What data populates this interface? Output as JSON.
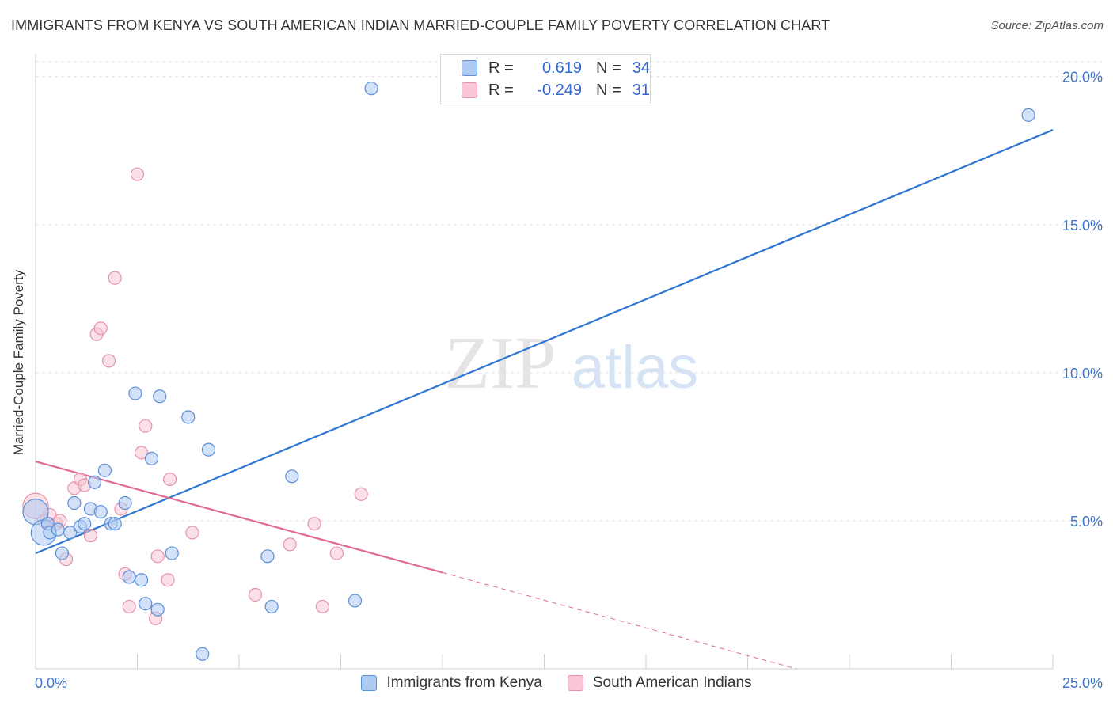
{
  "header": {
    "title": "IMMIGRANTS FROM KENYA VS SOUTH AMERICAN INDIAN MARRIED-COUPLE FAMILY POVERTY CORRELATION CHART",
    "source": "Source: ZipAtlas.com"
  },
  "watermark": {
    "zip": "ZIP",
    "atlas": "atlas"
  },
  "legend": {
    "r_label": "R =",
    "n_label": "N =",
    "series": [
      {
        "r": "0.619",
        "n": "34"
      },
      {
        "r": "-0.249",
        "n": "31"
      }
    ]
  },
  "colors": {
    "blue_fill": "#aecbf3",
    "blue_stroke": "#5b8fd6",
    "blue_line": "#2f74d0",
    "pink_fill": "#f8c6d4",
    "pink_stroke": "#e593ad",
    "pink_line": "#e06a96",
    "axis_text": "#3f74c9"
  },
  "chart_data": {
    "type": "scatter",
    "title": "IMMIGRANTS FROM KENYA VS SOUTH AMERICAN INDIAN MARRIED-COUPLE FAMILY POVERTY CORRELATION CHART",
    "xlabel": "",
    "ylabel": "Married-Couple Family Poverty",
    "xlim": [
      0,
      25
    ],
    "ylim": [
      0,
      20.5
    ],
    "x_tick_labels": [
      "0.0%",
      "25.0%"
    ],
    "y_ticks": [
      5,
      10,
      15,
      20
    ],
    "y_tick_labels": [
      "5.0%",
      "10.0%",
      "15.0%",
      "20.0%"
    ],
    "series": [
      {
        "name": "Immigrants from Kenya",
        "color": "blue",
        "points": [
          {
            "x": 0.0,
            "y": 5.3,
            "big": true
          },
          {
            "x": 0.2,
            "y": 4.6,
            "big": true
          },
          {
            "x": 0.3,
            "y": 4.9
          },
          {
            "x": 0.35,
            "y": 4.6
          },
          {
            "x": 0.55,
            "y": 4.7
          },
          {
            "x": 0.65,
            "y": 3.9
          },
          {
            "x": 0.85,
            "y": 4.6
          },
          {
            "x": 0.95,
            "y": 5.6
          },
          {
            "x": 1.1,
            "y": 4.8
          },
          {
            "x": 1.2,
            "y": 4.9
          },
          {
            "x": 1.35,
            "y": 5.4
          },
          {
            "x": 1.45,
            "y": 6.3
          },
          {
            "x": 1.6,
            "y": 5.3
          },
          {
            "x": 1.7,
            "y": 6.7
          },
          {
            "x": 1.85,
            "y": 4.9
          },
          {
            "x": 1.95,
            "y": 4.9
          },
          {
            "x": 2.2,
            "y": 5.6
          },
          {
            "x": 2.3,
            "y": 3.1
          },
          {
            "x": 2.45,
            "y": 9.3
          },
          {
            "x": 2.6,
            "y": 3.0
          },
          {
            "x": 2.7,
            "y": 2.2
          },
          {
            "x": 2.85,
            "y": 7.1
          },
          {
            "x": 3.0,
            "y": 2.0
          },
          {
            "x": 3.05,
            "y": 9.2
          },
          {
            "x": 3.35,
            "y": 3.9
          },
          {
            "x": 3.75,
            "y": 8.5
          },
          {
            "x": 4.1,
            "y": 0.5
          },
          {
            "x": 4.25,
            "y": 7.4
          },
          {
            "x": 5.7,
            "y": 3.8
          },
          {
            "x": 5.8,
            "y": 2.1
          },
          {
            "x": 6.3,
            "y": 6.5
          },
          {
            "x": 7.85,
            "y": 2.3
          },
          {
            "x": 8.25,
            "y": 19.6
          },
          {
            "x": 24.4,
            "y": 18.7
          }
        ],
        "trend": {
          "x0": 0,
          "y0": 3.9,
          "x1": 25,
          "y1": 18.2
        }
      },
      {
        "name": "South American Indians",
        "color": "pink",
        "points": [
          {
            "x": 0.0,
            "y": 5.5,
            "big": true
          },
          {
            "x": 0.2,
            "y": 5.0
          },
          {
            "x": 0.35,
            "y": 5.2
          },
          {
            "x": 0.5,
            "y": 4.9
          },
          {
            "x": 0.6,
            "y": 5.0
          },
          {
            "x": 0.75,
            "y": 3.7
          },
          {
            "x": 0.95,
            "y": 6.1
          },
          {
            "x": 1.1,
            "y": 6.4
          },
          {
            "x": 1.2,
            "y": 6.2
          },
          {
            "x": 1.35,
            "y": 4.5
          },
          {
            "x": 1.5,
            "y": 11.3
          },
          {
            "x": 1.6,
            "y": 11.5
          },
          {
            "x": 1.8,
            "y": 10.4
          },
          {
            "x": 1.95,
            "y": 13.2
          },
          {
            "x": 2.1,
            "y": 5.4
          },
          {
            "x": 2.2,
            "y": 3.2
          },
          {
            "x": 2.3,
            "y": 2.1
          },
          {
            "x": 2.5,
            "y": 16.7
          },
          {
            "x": 2.6,
            "y": 7.3
          },
          {
            "x": 2.7,
            "y": 8.2
          },
          {
            "x": 2.95,
            "y": 1.7
          },
          {
            "x": 3.0,
            "y": 3.8
          },
          {
            "x": 3.25,
            "y": 3.0
          },
          {
            "x": 3.3,
            "y": 6.4
          },
          {
            "x": 3.85,
            "y": 4.6
          },
          {
            "x": 5.4,
            "y": 2.5
          },
          {
            "x": 6.25,
            "y": 4.2
          },
          {
            "x": 6.85,
            "y": 4.9
          },
          {
            "x": 7.05,
            "y": 2.1
          },
          {
            "x": 7.4,
            "y": 3.9
          },
          {
            "x": 8.0,
            "y": 5.9
          }
        ],
        "trend": {
          "x0": 0,
          "y0": 7.0,
          "x1": 10,
          "y1": 3.25,
          "dash_x1": 18.7,
          "dash_y1": 0.0
        }
      }
    ]
  },
  "bottom_legend": [
    "Immigrants from Kenya",
    "South American Indians"
  ]
}
